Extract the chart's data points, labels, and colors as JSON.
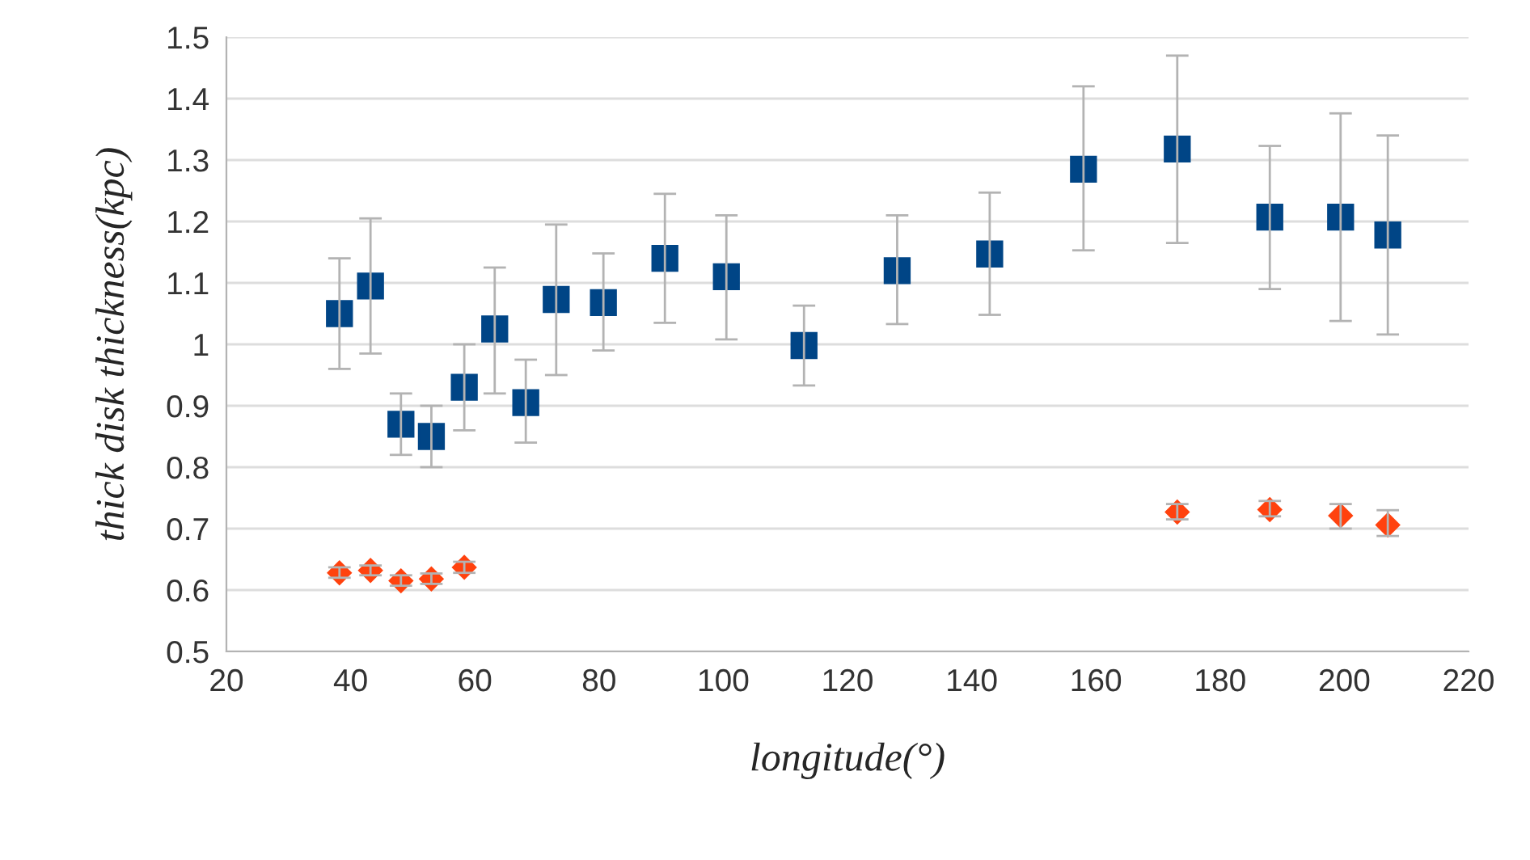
{
  "chart_data": {
    "type": "scatter",
    "xlabel": "longitude(°)",
    "ylabel": "thick disk thickness(kpc)",
    "xlim": [
      20,
      220
    ],
    "xticks": [
      20,
      40,
      60,
      80,
      100,
      120,
      140,
      160,
      180,
      200,
      220
    ],
    "ylim": [
      0.5,
      1.5
    ],
    "yticks": [
      0.5,
      0.6,
      0.7,
      0.8,
      0.9,
      1,
      1.1,
      1.2,
      1.3,
      1.4,
      1.5
    ],
    "grid": "y",
    "legend": false,
    "series": [
      {
        "color": "#004586",
        "marker": "square",
        "x": [
          38.2,
          43.2,
          48.1,
          53,
          58.3,
          63.2,
          68.2,
          73.1,
          80.7,
          90.6,
          100.5,
          113,
          128,
          142.9,
          158,
          173.1,
          188,
          199.4,
          207
        ],
        "values": [
          1.05,
          1.095,
          0.87,
          0.85,
          0.93,
          1.025,
          0.905,
          1.073,
          1.068,
          1.14,
          1.11,
          0.998,
          1.12,
          1.147,
          1.285,
          1.318,
          1.207,
          1.207,
          1.178
        ],
        "errors": [
          [
            0.96,
            1.14
          ],
          [
            0.985,
            1.205
          ],
          [
            0.82,
            0.92
          ],
          [
            0.8,
            0.9
          ],
          [
            0.86,
            1.0
          ],
          [
            0.92,
            1.125
          ],
          [
            0.84,
            0.975
          ],
          [
            0.95,
            1.195
          ],
          [
            0.99,
            1.148
          ],
          [
            1.035,
            1.245
          ],
          [
            1.008,
            1.21
          ],
          [
            0.933,
            1.063
          ],
          [
            1.033,
            1.21
          ],
          [
            1.048,
            1.247
          ],
          [
            1.153,
            1.42
          ],
          [
            1.165,
            1.47
          ],
          [
            1.09,
            1.323
          ],
          [
            1.038,
            1.376
          ],
          [
            1.016,
            1.34
          ]
        ]
      },
      {
        "color": "#ff420e",
        "marker": "diamond",
        "x": [
          38.2,
          43.2,
          48.1,
          53,
          58.3,
          173.1,
          188,
          199.4,
          207
        ],
        "values": [
          0.628,
          0.632,
          0.615,
          0.618,
          0.637,
          0.727,
          0.731,
          0.721,
          0.706
        ],
        "errors": [
          [
            0.62,
            0.637
          ],
          [
            0.624,
            0.64
          ],
          [
            0.607,
            0.624
          ],
          [
            0.61,
            0.627
          ],
          [
            0.628,
            0.646
          ],
          [
            0.715,
            0.74
          ],
          [
            0.72,
            0.745
          ],
          [
            0.7,
            0.74
          ],
          [
            0.688,
            0.73
          ]
        ]
      }
    ]
  }
}
